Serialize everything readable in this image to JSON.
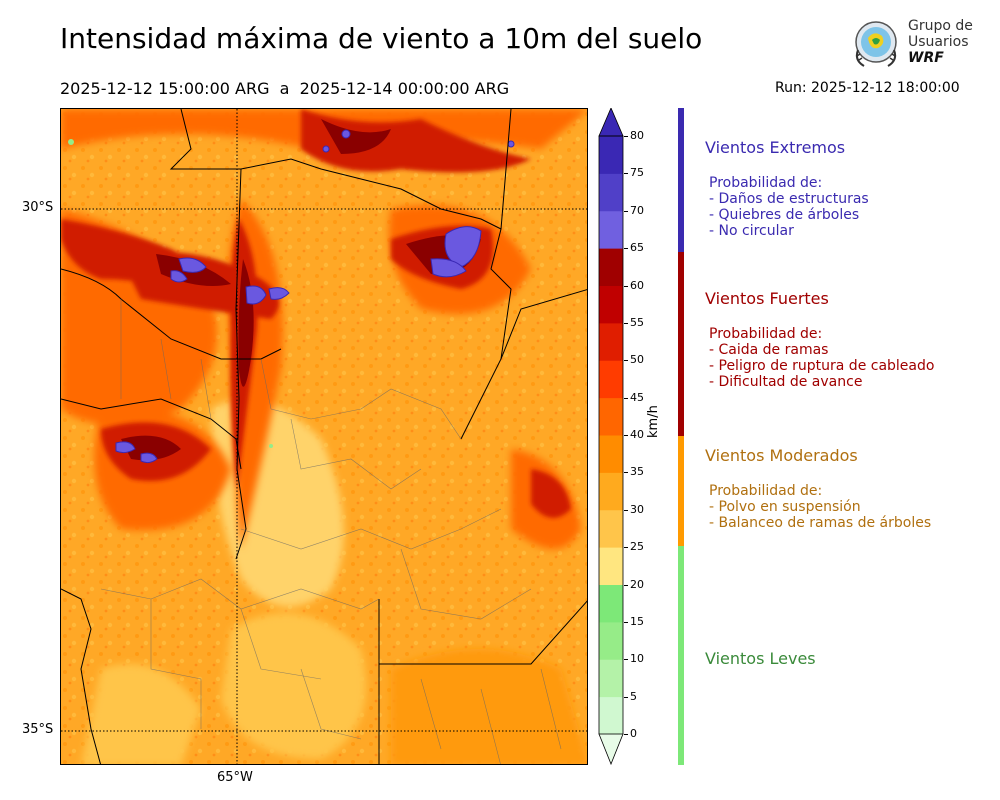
{
  "header": {
    "title": "Intensidad máxima de viento a 10m del suelo",
    "period": "2025-12-12 15:00:00 ARG  a  2025-12-14 00:00:00 ARG",
    "run": "Run: 2025-12-12 18:00:00"
  },
  "logo": {
    "line1": "Grupo de",
    "line2": "Usuarios",
    "line3": "WRF"
  },
  "map": {
    "lat_labels": [
      "30°S",
      "35°S"
    ],
    "lon_labels": [
      "65°W"
    ]
  },
  "colorbar": {
    "unit": "km/h",
    "ticks": [
      "0",
      "5",
      "10",
      "15",
      "20",
      "25",
      "30",
      "35",
      "40",
      "45",
      "50",
      "55",
      "60",
      "65",
      "70",
      "75",
      "80"
    ],
    "colors": [
      "#e8fce8",
      "#d0f8d0",
      "#b4f2a8",
      "#96ec88",
      "#7de878",
      "#ffe680",
      "#ffc54a",
      "#ffaa1e",
      "#ff8c00",
      "#ff6600",
      "#ff3c00",
      "#e01e00",
      "#c00000",
      "#a00000",
      "#7060e0",
      "#5040c8",
      "#3a28b4",
      "#3a28b4"
    ]
  },
  "categories": [
    {
      "title": "Vientos Extremos",
      "color": "#3a2ab0",
      "desc": [
        "Probabilidad de:",
        "- Daños de estructuras",
        "- Quiebres de árboles",
        "- No circular"
      ]
    },
    {
      "title": "Vientos Fuertes",
      "color": "#a00000",
      "desc": [
        "Probabilidad de:",
        "- Caida de ramas",
        "- Peligro de ruptura de cableado",
        "- Dificultad de avance"
      ]
    },
    {
      "title": "Vientos Moderados",
      "color": "#b07010",
      "desc": [
        "Probabilidad de:",
        "- Polvo en suspensión",
        "- Balanceo de ramas de árboles"
      ]
    },
    {
      "title": "Vientos Leves",
      "color": "#3a8a3a",
      "desc": []
    }
  ]
}
